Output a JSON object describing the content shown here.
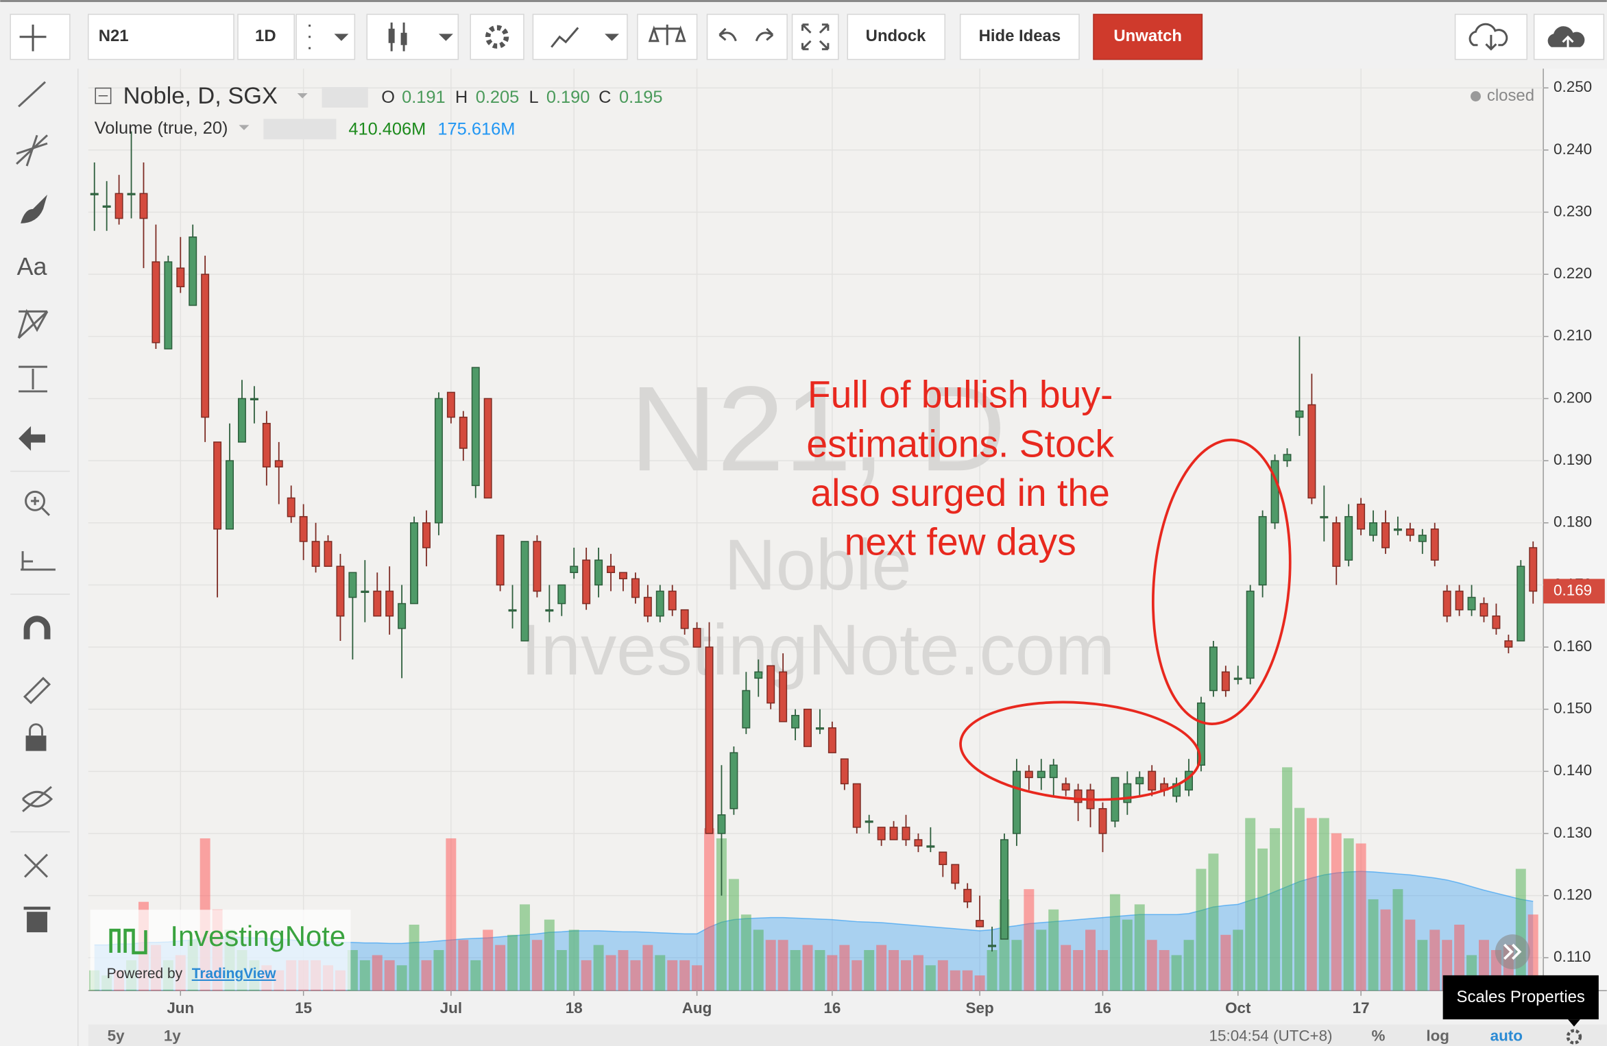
{
  "toolbar": {
    "symbol": "N21",
    "interval": "1D",
    "undock": "Undock",
    "hide_ideas": "Hide Ideas",
    "unwatch": "Unwatch"
  },
  "sidebar": {
    "text_tool": "Aa"
  },
  "chart_data": {
    "type": "candlestick",
    "title": "Noble, D, SGX",
    "legend": {
      "o_label": "O",
      "o": "0.191",
      "h_label": "H",
      "h": "0.205",
      "l_label": "L",
      "l": "0.190",
      "c_label": "C",
      "c": "0.195"
    },
    "volume_legend": {
      "title": "Volume (true, 20)",
      "volume": "410.406M",
      "ma": "175.616M"
    },
    "status": "closed",
    "watermark": {
      "symbol": "N21, D",
      "name": "Noble",
      "site": "InvestingNote.com"
    },
    "annotation": [
      "Full of bullish buy-",
      "estimations. Stock",
      "also surged in the",
      "next few days"
    ],
    "up_color": "#4f9a68",
    "down_color": "#d44b3e",
    "ohlc": [
      [
        0.233,
        0.238,
        0.227,
        0.233
      ],
      [
        0.231,
        0.235,
        0.227,
        0.231
      ],
      [
        0.233,
        0.236,
        0.228,
        0.229
      ],
      [
        0.233,
        0.243,
        0.229,
        0.233
      ],
      [
        0.233,
        0.238,
        0.221,
        0.229
      ],
      [
        0.222,
        0.228,
        0.208,
        0.209
      ],
      [
        0.208,
        0.223,
        0.208,
        0.222
      ],
      [
        0.221,
        0.226,
        0.217,
        0.218
      ],
      [
        0.215,
        0.228,
        0.215,
        0.226
      ],
      [
        0.22,
        0.223,
        0.193,
        0.197
      ],
      [
        0.193,
        0.193,
        0.168,
        0.179
      ],
      [
        0.179,
        0.196,
        0.179,
        0.19
      ],
      [
        0.193,
        0.203,
        0.193,
        0.2
      ],
      [
        0.2,
        0.202,
        0.196,
        0.2
      ],
      [
        0.196,
        0.198,
        0.186,
        0.189
      ],
      [
        0.19,
        0.193,
        0.183,
        0.189
      ],
      [
        0.184,
        0.186,
        0.18,
        0.181
      ],
      [
        0.181,
        0.183,
        0.174,
        0.177
      ],
      [
        0.177,
        0.18,
        0.172,
        0.173
      ],
      [
        0.177,
        0.178,
        0.173,
        0.173
      ],
      [
        0.173,
        0.175,
        0.161,
        0.165
      ],
      [
        0.168,
        0.172,
        0.158,
        0.172
      ],
      [
        0.169,
        0.174,
        0.164,
        0.169
      ],
      [
        0.169,
        0.172,
        0.165,
        0.165
      ],
      [
        0.169,
        0.173,
        0.162,
        0.165
      ],
      [
        0.163,
        0.17,
        0.155,
        0.167
      ],
      [
        0.167,
        0.181,
        0.167,
        0.18
      ],
      [
        0.18,
        0.182,
        0.173,
        0.176
      ],
      [
        0.18,
        0.201,
        0.178,
        0.2
      ],
      [
        0.201,
        0.201,
        0.196,
        0.197
      ],
      [
        0.197,
        0.198,
        0.19,
        0.192
      ],
      [
        0.186,
        0.205,
        0.184,
        0.205
      ],
      [
        0.2,
        0.2,
        0.184,
        0.184
      ],
      [
        0.178,
        0.178,
        0.169,
        0.17
      ],
      [
        0.166,
        0.17,
        0.163,
        0.166
      ],
      [
        0.161,
        0.177,
        0.161,
        0.177
      ],
      [
        0.177,
        0.178,
        0.168,
        0.169
      ],
      [
        0.166,
        0.17,
        0.164,
        0.166
      ],
      [
        0.167,
        0.17,
        0.165,
        0.17
      ],
      [
        0.172,
        0.176,
        0.171,
        0.173
      ],
      [
        0.174,
        0.176,
        0.166,
        0.167
      ],
      [
        0.17,
        0.176,
        0.168,
        0.174
      ],
      [
        0.173,
        0.175,
        0.169,
        0.172
      ],
      [
        0.172,
        0.172,
        0.169,
        0.171
      ],
      [
        0.171,
        0.172,
        0.167,
        0.168
      ],
      [
        0.168,
        0.17,
        0.164,
        0.165
      ],
      [
        0.165,
        0.17,
        0.164,
        0.169
      ],
      [
        0.169,
        0.17,
        0.165,
        0.166
      ],
      [
        0.166,
        0.166,
        0.162,
        0.163
      ],
      [
        0.163,
        0.164,
        0.16,
        0.16
      ],
      [
        0.16,
        0.164,
        0.13,
        0.13
      ],
      [
        0.13,
        0.141,
        0.12,
        0.133
      ],
      [
        0.134,
        0.144,
        0.133,
        0.143
      ],
      [
        0.147,
        0.156,
        0.146,
        0.153
      ],
      [
        0.155,
        0.158,
        0.152,
        0.156
      ],
      [
        0.157,
        0.157,
        0.15,
        0.151
      ],
      [
        0.156,
        0.159,
        0.148,
        0.148
      ],
      [
        0.147,
        0.15,
        0.145,
        0.149
      ],
      [
        0.15,
        0.15,
        0.144,
        0.144
      ],
      [
        0.147,
        0.15,
        0.146,
        0.147
      ],
      [
        0.147,
        0.148,
        0.143,
        0.143
      ],
      [
        0.142,
        0.142,
        0.137,
        0.138
      ],
      [
        0.138,
        0.138,
        0.13,
        0.131
      ],
      [
        0.132,
        0.133,
        0.13,
        0.132
      ],
      [
        0.131,
        0.131,
        0.128,
        0.129
      ],
      [
        0.131,
        0.132,
        0.129,
        0.129
      ],
      [
        0.131,
        0.133,
        0.128,
        0.129
      ],
      [
        0.129,
        0.13,
        0.127,
        0.128
      ],
      [
        0.128,
        0.131,
        0.127,
        0.128
      ],
      [
        0.127,
        0.127,
        0.123,
        0.125
      ],
      [
        0.125,
        0.125,
        0.121,
        0.122
      ],
      [
        0.121,
        0.122,
        0.118,
        0.119
      ],
      [
        0.116,
        0.12,
        0.115,
        0.115
      ],
      [
        0.112,
        0.115,
        0.111,
        0.112
      ],
      [
        0.113,
        0.13,
        0.113,
        0.129
      ],
      [
        0.13,
        0.142,
        0.128,
        0.14
      ],
      [
        0.14,
        0.141,
        0.137,
        0.139
      ],
      [
        0.139,
        0.142,
        0.137,
        0.14
      ],
      [
        0.139,
        0.142,
        0.136,
        0.141
      ],
      [
        0.138,
        0.139,
        0.136,
        0.137
      ],
      [
        0.137,
        0.138,
        0.132,
        0.135
      ],
      [
        0.137,
        0.138,
        0.131,
        0.134
      ],
      [
        0.134,
        0.135,
        0.127,
        0.13
      ],
      [
        0.132,
        0.139,
        0.131,
        0.139
      ],
      [
        0.135,
        0.14,
        0.133,
        0.138
      ],
      [
        0.138,
        0.14,
        0.136,
        0.139
      ],
      [
        0.14,
        0.141,
        0.136,
        0.137
      ],
      [
        0.138,
        0.139,
        0.136,
        0.137
      ],
      [
        0.136,
        0.139,
        0.135,
        0.138
      ],
      [
        0.137,
        0.142,
        0.136,
        0.14
      ],
      [
        0.141,
        0.152,
        0.14,
        0.151
      ],
      [
        0.153,
        0.161,
        0.152,
        0.16
      ],
      [
        0.156,
        0.157,
        0.152,
        0.153
      ],
      [
        0.155,
        0.157,
        0.154,
        0.155
      ],
      [
        0.155,
        0.17,
        0.154,
        0.169
      ],
      [
        0.17,
        0.182,
        0.168,
        0.181
      ],
      [
        0.18,
        0.191,
        0.179,
        0.19
      ],
      [
        0.19,
        0.192,
        0.189,
        0.191
      ],
      [
        0.197,
        0.21,
        0.194,
        0.198
      ],
      [
        0.199,
        0.204,
        0.183,
        0.184
      ],
      [
        0.181,
        0.186,
        0.177,
        0.181
      ],
      [
        0.18,
        0.181,
        0.17,
        0.173
      ],
      [
        0.174,
        0.183,
        0.173,
        0.181
      ],
      [
        0.183,
        0.184,
        0.178,
        0.179
      ],
      [
        0.178,
        0.182,
        0.177,
        0.18
      ],
      [
        0.18,
        0.182,
        0.175,
        0.176
      ],
      [
        0.179,
        0.181,
        0.178,
        0.179
      ],
      [
        0.179,
        0.18,
        0.177,
        0.178
      ],
      [
        0.177,
        0.179,
        0.175,
        0.178
      ],
      [
        0.179,
        0.18,
        0.173,
        0.174
      ],
      [
        0.169,
        0.17,
        0.164,
        0.165
      ],
      [
        0.169,
        0.17,
        0.165,
        0.166
      ],
      [
        0.166,
        0.17,
        0.165,
        0.168
      ],
      [
        0.167,
        0.168,
        0.164,
        0.165
      ],
      [
        0.165,
        0.167,
        0.162,
        0.163
      ],
      [
        0.161,
        0.162,
        0.159,
        0.16
      ],
      [
        0.161,
        0.174,
        0.161,
        0.173
      ],
      [
        0.176,
        0.177,
        0.167,
        0.169
      ]
    ],
    "volume": [
      40,
      30,
      40,
      60,
      175,
      90,
      60,
      70,
      100,
      300,
      160,
      120,
      80,
      60,
      50,
      40,
      60,
      60,
      60,
      50,
      40,
      80,
      60,
      70,
      60,
      50,
      130,
      60,
      80,
      300,
      100,
      60,
      120,
      90,
      110,
      170,
      100,
      140,
      80,
      120,
      60,
      90,
      70,
      80,
      60,
      90,
      70,
      60,
      60,
      50,
      320,
      300,
      220,
      150,
      120,
      100,
      100,
      80,
      90,
      80,
      70,
      90,
      60,
      80,
      90,
      80,
      60,
      70,
      50,
      60,
      40,
      40,
      30,
      80,
      180,
      100,
      200,
      120,
      160,
      90,
      80,
      120,
      80,
      190,
      140,
      170,
      100,
      80,
      70,
      100,
      240,
      270,
      110,
      120,
      340,
      280,
      320,
      440,
      360,
      340,
      340,
      310,
      300,
      290,
      180,
      160,
      200,
      140,
      100,
      120,
      100,
      130,
      70,
      100,
      80,
      90,
      240,
      150
    ],
    "volume_ma": [
      90,
      90,
      92,
      92,
      95,
      95,
      96,
      98,
      100,
      105,
      106,
      106,
      105,
      104,
      103,
      102,
      100,
      98,
      97,
      96,
      95,
      95,
      94,
      94,
      93,
      93,
      95,
      96,
      98,
      100,
      102,
      103,
      104,
      106,
      108,
      110,
      112,
      115,
      116,
      118,
      118,
      118,
      117,
      116,
      116,
      115,
      114,
      113,
      112,
      112,
      125,
      135,
      140,
      142,
      143,
      144,
      144,
      143,
      142,
      141,
      140,
      138,
      136,
      135,
      134,
      132,
      130,
      128,
      126,
      124,
      122,
      120,
      118,
      120,
      125,
      128,
      132,
      134,
      136,
      138,
      140,
      142,
      144,
      146,
      148,
      150,
      150,
      150,
      150,
      152,
      158,
      165,
      168,
      170,
      178,
      185,
      195,
      205,
      215,
      222,
      228,
      232,
      234,
      235,
      234,
      232,
      230,
      228,
      225,
      222,
      218,
      212,
      205,
      198,
      192,
      186,
      180,
      176
    ],
    "volume_up_color": "rgba(76,175,80,0.5)",
    "volume_down_color": "rgba(255,82,82,0.5)",
    "volume_ma_color": "rgba(33,150,243,0.35)",
    "volume_ylim": [
      0,
      450
    ],
    "xlim": [
      -0.5,
      117.83
    ],
    "xticks": [
      {
        "value": 7,
        "label": "Jun"
      },
      {
        "value": 17,
        "label": "15"
      },
      {
        "value": 29,
        "label": "Jul"
      },
      {
        "value": 39,
        "label": "18"
      },
      {
        "value": 49,
        "label": "Aug"
      },
      {
        "value": 60,
        "label": "16"
      },
      {
        "value": 72,
        "label": "Sep"
      },
      {
        "value": 82,
        "label": "16"
      },
      {
        "value": 93,
        "label": "Oct"
      },
      {
        "value": 103,
        "label": "17"
      }
    ],
    "ylim": [
      0.1047,
      0.2531
    ],
    "yticks": [
      {
        "value": 0.25,
        "label": "0.250"
      },
      {
        "value": 0.24,
        "label": "0.240"
      },
      {
        "value": 0.23,
        "label": "0.230"
      },
      {
        "value": 0.22,
        "label": "0.220"
      },
      {
        "value": 0.21,
        "label": "0.210"
      },
      {
        "value": 0.2,
        "label": "0.200"
      },
      {
        "value": 0.19,
        "label": "0.190"
      },
      {
        "value": 0.18,
        "label": "0.180"
      },
      {
        "value": 0.17,
        "label": "0.170"
      },
      {
        "value": 0.16,
        "label": "0.160"
      },
      {
        "value": 0.15,
        "label": "0.150"
      },
      {
        "value": 0.14,
        "label": "0.140"
      },
      {
        "value": 0.13,
        "label": "0.130"
      },
      {
        "value": 0.12,
        "label": "0.120"
      },
      {
        "value": 0.11,
        "label": "0.110"
      }
    ],
    "last_price": {
      "value": 0.169,
      "label": "0.169"
    },
    "grid": true
  },
  "logo": {
    "brand": "InvestingNote",
    "powered": "Powered by",
    "provider": "TradingView"
  },
  "bottom_bar": {
    "range_5y": "5y",
    "range_1y": "1y",
    "time": "15:04:54 (UTC+8)",
    "percent": "%",
    "log": "log",
    "auto": "auto"
  },
  "tooltip": "Scales Properties"
}
